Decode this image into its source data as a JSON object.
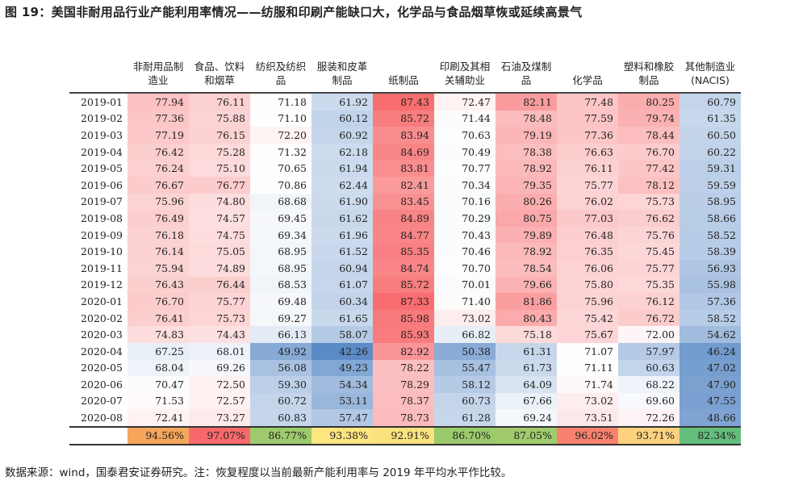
{
  "title": "图 19：美国非耐用品行业产能利用率情况——纺服和印刷产能缺口大，化学品与食品烟草恢或延续高景气",
  "headers": [
    "非耐用品制造业",
    "食品、饮料和烟草",
    "纺织及纺织品",
    "服装和皮革制品",
    "纸制品",
    "印刷及其相关辅助业",
    "石油及煤制品",
    "化学品",
    "塑料和橡胶制品",
    "其他制造业(NACIS)"
  ],
  "rows": [
    {
      "date": "2019-01",
      "values": [
        "77.94",
        "76.11",
        "71.18",
        "61.92",
        "87.43",
        "72.47",
        "82.11",
        "77.48",
        "80.25",
        "60.79"
      ]
    },
    {
      "date": "2019-02",
      "values": [
        "77.36",
        "75.88",
        "71.10",
        "60.12",
        "85.72",
        "71.44",
        "78.48",
        "77.59",
        "79.74",
        "61.35"
      ]
    },
    {
      "date": "2019-03",
      "values": [
        "77.19",
        "76.15",
        "72.20",
        "60.92",
        "83.94",
        "70.63",
        "79.19",
        "77.36",
        "78.44",
        "60.50"
      ]
    },
    {
      "date": "2019-04",
      "values": [
        "76.42",
        "75.28",
        "71.32",
        "62.18",
        "84.69",
        "70.49",
        "78.38",
        "76.63",
        "76.70",
        "60.22"
      ]
    },
    {
      "date": "2019-05",
      "values": [
        "76.24",
        "75.10",
        "70.65",
        "61.94",
        "83.81",
        "70.77",
        "78.92",
        "76.11",
        "77.42",
        "59.31"
      ]
    },
    {
      "date": "2019-06",
      "values": [
        "76.67",
        "76.77",
        "70.86",
        "62.44",
        "82.41",
        "70.34",
        "79.35",
        "75.77",
        "78.12",
        "59.59"
      ]
    },
    {
      "date": "2019-07",
      "values": [
        "75.96",
        "74.80",
        "68.68",
        "61.90",
        "83.45",
        "70.16",
        "80.26",
        "76.02",
        "75.73",
        "58.95"
      ]
    },
    {
      "date": "2019-08",
      "values": [
        "76.49",
        "74.57",
        "69.45",
        "61.62",
        "84.89",
        "70.29",
        "80.75",
        "77.03",
        "76.62",
        "58.66"
      ]
    },
    {
      "date": "2019-09",
      "values": [
        "76.18",
        "74.75",
        "69.34",
        "61.96",
        "84.77",
        "70.43",
        "79.89",
        "76.48",
        "75.76",
        "58.52"
      ]
    },
    {
      "date": "2019-10",
      "values": [
        "76.14",
        "75.05",
        "68.95",
        "61.52",
        "85.35",
        "70.46",
        "78.92",
        "76.35",
        "75.45",
        "58.39"
      ]
    },
    {
      "date": "2019-11",
      "values": [
        "75.94",
        "74.89",
        "68.95",
        "60.94",
        "84.74",
        "70.70",
        "78.54",
        "76.06",
        "75.77",
        "56.93"
      ]
    },
    {
      "date": "2019-12",
      "values": [
        "76.43",
        "76.44",
        "68.53",
        "61.07",
        "85.72",
        "70.01",
        "79.66",
        "75.80",
        "75.35",
        "55.98"
      ]
    },
    {
      "date": "2020-01",
      "values": [
        "76.70",
        "75.77",
        "69.48",
        "60.34",
        "87.33",
        "71.40",
        "81.86",
        "75.96",
        "76.12",
        "57.36"
      ]
    },
    {
      "date": "2020-02",
      "values": [
        "76.41",
        "75.73",
        "69.27",
        "61.65",
        "85.98",
        "73.02",
        "80.43",
        "75.42",
        "76.72",
        "58.52"
      ]
    },
    {
      "date": "2020-03",
      "values": [
        "74.83",
        "74.43",
        "66.13",
        "58.07",
        "85.93",
        "66.82",
        "75.18",
        "75.67",
        "72.00",
        "54.62"
      ]
    },
    {
      "date": "2020-04",
      "values": [
        "67.25",
        "68.01",
        "49.92",
        "42.26",
        "82.92",
        "50.38",
        "61.31",
        "71.07",
        "57.97",
        "46.24"
      ]
    },
    {
      "date": "2020-05",
      "values": [
        "68.04",
        "69.26",
        "56.08",
        "49.23",
        "78.22",
        "55.47",
        "61.73",
        "71.11",
        "60.63",
        "47.02"
      ]
    },
    {
      "date": "2020-06",
      "values": [
        "70.47",
        "72.50",
        "59.30",
        "54.34",
        "78.29",
        "58.12",
        "64.09",
        "71.74",
        "68.22",
        "47.90"
      ]
    },
    {
      "date": "2020-07",
      "values": [
        "71.53",
        "72.57",
        "60.72",
        "53.11",
        "78.37",
        "60.73",
        "67.66",
        "73.02",
        "69.60",
        "47.55"
      ]
    },
    {
      "date": "2020-08",
      "values": [
        "72.41",
        "73.27",
        "60.83",
        "57.47",
        "78.73",
        "61.28",
        "69.24",
        "73.51",
        "72.26",
        "48.66"
      ]
    }
  ],
  "recovery": [
    "94.56%",
    "97.07%",
    "86.77%",
    "93.38%",
    "92.91%",
    "86.70%",
    "87.05%",
    "96.02%",
    "93.71%",
    "82.34%"
  ],
  "recovery_colors": [
    "#f5a65b",
    "#f8696b",
    "#9dca6c",
    "#fde57f",
    "#fbe27f",
    "#9bca6d",
    "#a0cb6d",
    "#f8816e",
    "#fdd27f",
    "#63be7b"
  ],
  "footer": "数据来源：wind，国泰君安证券研究。注：恢复程度以当前最新产能利用率与 2019 年平均水平作比较。"
}
